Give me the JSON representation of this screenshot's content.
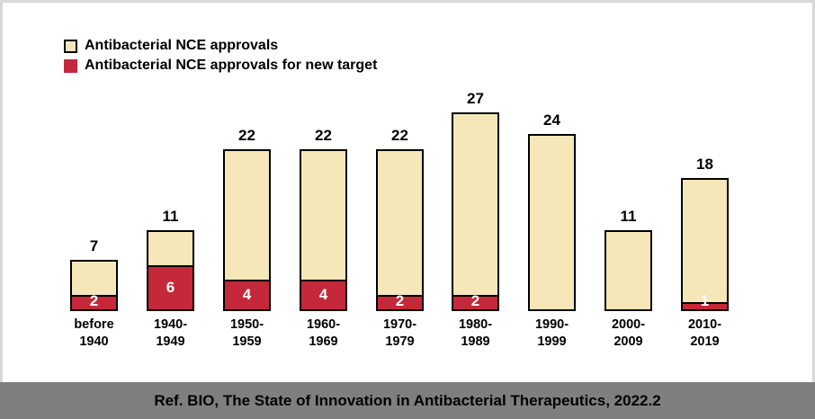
{
  "legend": {
    "items": [
      {
        "label": "Antibacterial NCE approvals",
        "color": "#F5E7B8"
      },
      {
        "label": "Antibacterial NCE approvals for new target",
        "color": "#C5283A"
      }
    ]
  },
  "caption": {
    "text": "Ref. BIO, The State of Innovation in Antibacterial Therapeutics, 2022.2"
  },
  "colors": {
    "bar_fill": "#F5E7B8",
    "new_target_fill": "#C5283A",
    "bar_border": "#000000",
    "caption_background": "#7F7F7F",
    "frame_border": "#D8D8D8"
  },
  "chart_data": {
    "type": "bar",
    "title": "",
    "xlabel": "",
    "ylabel": "",
    "ylim": [
      0,
      28
    ],
    "grid": false,
    "legend_position": "top-left",
    "categories": [
      [
        "before",
        "1940"
      ],
      [
        "1940-",
        "1949"
      ],
      [
        "1950-",
        "1959"
      ],
      [
        "1960-",
        "1969"
      ],
      [
        "1970-",
        "1979"
      ],
      [
        "1980-",
        "1989"
      ],
      [
        "1990-",
        "1999"
      ],
      [
        "2000-",
        "2009"
      ],
      [
        "2010-",
        "2019"
      ]
    ],
    "series": [
      {
        "name": "Antibacterial NCE approvals",
        "values": [
          7,
          11,
          22,
          22,
          22,
          27,
          24,
          11,
          18
        ],
        "color": "#F5E7B8"
      },
      {
        "name": "Antibacterial NCE approvals for new target",
        "values": [
          2,
          6,
          4,
          4,
          2,
          2,
          0,
          0,
          1
        ],
        "color": "#C5283A"
      }
    ]
  }
}
